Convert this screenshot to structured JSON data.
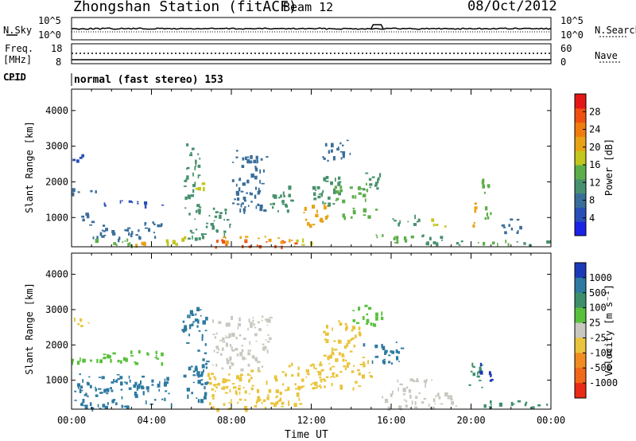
{
  "header": {
    "station": "Zhongshan Station (fitACF)",
    "beam": "Beam 12",
    "date": "08/Oct/2012",
    "cpid_label": "CPID",
    "cpid_value": "normal (fast stereo) 153"
  },
  "strip_labels": {
    "nsky": "N.Sky",
    "nsearch": "N.Search",
    "freq_line1": "Freq.",
    "freq_line2": "[MHz]",
    "nave": "Nave",
    "nsky_top": "10^5",
    "nsky_bottom": "10^0",
    "freq_top": "18",
    "freq_bottom": "8",
    "nave_top": "60",
    "nave_bottom": "0"
  },
  "axes": {
    "ylabel": "Slant Range [km]",
    "xlabel": "Time UT",
    "yticks": [
      "1000",
      "2000",
      "3000",
      "4000"
    ],
    "xticks": [
      "00:00",
      "04:00",
      "08:00",
      "12:00",
      "16:00",
      "20:00",
      "00:00"
    ]
  },
  "colorbars": {
    "power": {
      "label": "Power [dB]",
      "ticks": [
        "4",
        "8",
        "12",
        "16",
        "20",
        "24",
        "28"
      ]
    },
    "velocity": {
      "label": "Velocity [m s⁻¹]",
      "ticks": [
        "1000",
        "500",
        "100",
        "25",
        "-25",
        "-100",
        "-500",
        "-1000"
      ]
    }
  },
  "colors": {
    "power_scale": [
      "#1a22e8",
      "#2a4fb8",
      "#3a6e9a",
      "#48916e",
      "#5dae4a",
      "#c2c61e",
      "#e9a215",
      "#f07c10",
      "#ef5012",
      "#e51616"
    ],
    "velocity_scale": [
      "#1b3ab8",
      "#2e7aa0",
      "#3d8f6a",
      "#58c03c",
      "#c8c8c0",
      "#e9c43c",
      "#f08c20",
      "#f06818",
      "#e82a16"
    ]
  },
  "chart_data": [
    {
      "type": "heatmap",
      "panel": "power",
      "ylabel": "Slant Range [km]",
      "xlabel": "Time UT",
      "x_range_hours": [
        0,
        24
      ],
      "ylim_km": [
        180,
        4600
      ],
      "colorbar_label": "Power [dB]",
      "colorbar_range_db": [
        0,
        32
      ],
      "patches": [
        {
          "t0": 0.0,
          "t1": 0.6,
          "r0": 2550,
          "r1": 2800,
          "v": 6
        },
        {
          "t0": 0.0,
          "t1": 1.5,
          "r0": 1700,
          "r1": 1850,
          "v": 7
        },
        {
          "t0": 1.5,
          "t1": 5.0,
          "r0": 1350,
          "r1": 1500,
          "v": 6
        },
        {
          "t0": 0.1,
          "t1": 1.0,
          "r0": 800,
          "r1": 1200,
          "v": 8
        },
        {
          "t0": 1.0,
          "t1": 4.5,
          "r0": 400,
          "r1": 900,
          "v": 9
        },
        {
          "t0": 0.5,
          "t1": 3.0,
          "r0": 250,
          "r1": 420,
          "v": 14
        },
        {
          "t0": 3.0,
          "t1": 4.2,
          "r0": 250,
          "r1": 380,
          "v": 20
        },
        {
          "t0": 4.7,
          "t1": 5.8,
          "r0": 250,
          "r1": 500,
          "v": 16
        },
        {
          "t0": 5.6,
          "t1": 6.4,
          "r0": 1000,
          "r1": 3100,
          "v": 10
        },
        {
          "t0": 5.8,
          "t1": 6.8,
          "r0": 350,
          "r1": 1000,
          "v": 12
        },
        {
          "t0": 6.2,
          "t1": 6.6,
          "r0": 1600,
          "r1": 2000,
          "v": 17
        },
        {
          "t0": 6.8,
          "t1": 8.0,
          "r0": 500,
          "r1": 1300,
          "v": 11
        },
        {
          "t0": 6.8,
          "t1": 11.5,
          "r0": 200,
          "r1": 400,
          "v": 27
        },
        {
          "t0": 7.5,
          "t1": 11.0,
          "r0": 300,
          "r1": 500,
          "v": 21
        },
        {
          "t0": 8.0,
          "t1": 9.8,
          "r0": 1200,
          "r1": 2900,
          "v": 9
        },
        {
          "t0": 9.8,
          "t1": 11.0,
          "r0": 1100,
          "r1": 1900,
          "v": 10
        },
        {
          "t0": 11.0,
          "t1": 12.0,
          "r0": 200,
          "r1": 420,
          "v": 18
        },
        {
          "t0": 11.5,
          "t1": 12.8,
          "r0": 700,
          "r1": 1400,
          "v": 20
        },
        {
          "t0": 12.0,
          "t1": 13.5,
          "r0": 1400,
          "r1": 2200,
          "v": 12
        },
        {
          "t0": 13.0,
          "t1": 14.8,
          "r0": 1500,
          "r1": 2000,
          "v": 15
        },
        {
          "t0": 13.5,
          "t1": 15.2,
          "r0": 1000,
          "r1": 1300,
          "v": 14
        },
        {
          "t0": 12.5,
          "t1": 14.0,
          "r0": 2600,
          "r1": 3200,
          "v": 9
        },
        {
          "t0": 14.5,
          "t1": 15.5,
          "r0": 1700,
          "r1": 2300,
          "v": 11
        },
        {
          "t0": 15.0,
          "t1": 17.0,
          "r0": 300,
          "r1": 600,
          "v": 13
        },
        {
          "t0": 16.0,
          "t1": 17.5,
          "r0": 800,
          "r1": 1100,
          "v": 10
        },
        {
          "t0": 17.5,
          "t1": 19.5,
          "r0": 250,
          "r1": 550,
          "v": 11
        },
        {
          "t0": 18.0,
          "t1": 18.8,
          "r0": 750,
          "r1": 1000,
          "v": 18
        },
        {
          "t0": 20.0,
          "t1": 20.5,
          "r0": 800,
          "r1": 1500,
          "v": 21
        },
        {
          "t0": 20.5,
          "t1": 21.0,
          "r0": 1000,
          "r1": 2100,
          "v": 13
        },
        {
          "t0": 20.2,
          "t1": 22.0,
          "r0": 250,
          "r1": 400,
          "v": 14
        },
        {
          "t0": 22.0,
          "t1": 23.9,
          "r0": 250,
          "r1": 380,
          "v": 10
        },
        {
          "t0": 21.5,
          "t1": 22.5,
          "r0": 600,
          "r1": 1100,
          "v": 8
        }
      ]
    },
    {
      "type": "heatmap",
      "panel": "velocity",
      "ylabel": "Slant Range [km]",
      "xlabel": "Time UT",
      "x_range_hours": [
        0,
        24
      ],
      "ylim_km": [
        180,
        4600
      ],
      "colorbar_label": "Velocity [m s⁻¹]",
      "colorbar_ticks_ms": [
        1000,
        500,
        100,
        25,
        -25,
        -100,
        -500,
        -1000
      ],
      "patches": [
        {
          "t0": 0.0,
          "t1": 1.0,
          "r0": 2550,
          "r1": 2800,
          "v": -250
        },
        {
          "t0": 0.0,
          "t1": 4.5,
          "r0": 1500,
          "r1": 1850,
          "v": 0
        },
        {
          "t0": 0.0,
          "t1": 5.0,
          "r0": 200,
          "r1": 1200,
          "v": 150
        },
        {
          "t0": 5.5,
          "t1": 6.8,
          "r0": 400,
          "r1": 3100,
          "v": 160
        },
        {
          "t0": 6.8,
          "t1": 10.5,
          "r0": 200,
          "r1": 1300,
          "v": -250
        },
        {
          "t0": 7.0,
          "t1": 10.0,
          "r0": 1300,
          "r1": 2900,
          "v": -60
        },
        {
          "t0": 9.5,
          "t1": 11.5,
          "r0": 250,
          "r1": 700,
          "v": -300
        },
        {
          "t0": 10.5,
          "t1": 12.5,
          "r0": 700,
          "r1": 1500,
          "v": -400
        },
        {
          "t0": 12.0,
          "t1": 15.0,
          "r0": 800,
          "r1": 1700,
          "v": -400
        },
        {
          "t0": 12.5,
          "t1": 14.5,
          "r0": 1700,
          "r1": 2700,
          "v": -350
        },
        {
          "t0": 14.0,
          "t1": 15.5,
          "r0": 2600,
          "r1": 3200,
          "v": 0
        },
        {
          "t0": 14.5,
          "t1": 16.5,
          "r0": 1500,
          "r1": 2100,
          "v": 120
        },
        {
          "t0": 15.5,
          "t1": 19.5,
          "r0": 250,
          "r1": 700,
          "v": -90
        },
        {
          "t0": 16.0,
          "t1": 18.0,
          "r0": 700,
          "r1": 1100,
          "v": -60
        },
        {
          "t0": 19.8,
          "t1": 20.6,
          "r0": 700,
          "r1": 1500,
          "v": 60
        },
        {
          "t0": 20.4,
          "t1": 21.0,
          "r0": 1000,
          "r1": 1600,
          "v": 800
        },
        {
          "t0": 20.5,
          "t1": 23.9,
          "r0": 250,
          "r1": 450,
          "v": 60
        }
      ]
    }
  ]
}
